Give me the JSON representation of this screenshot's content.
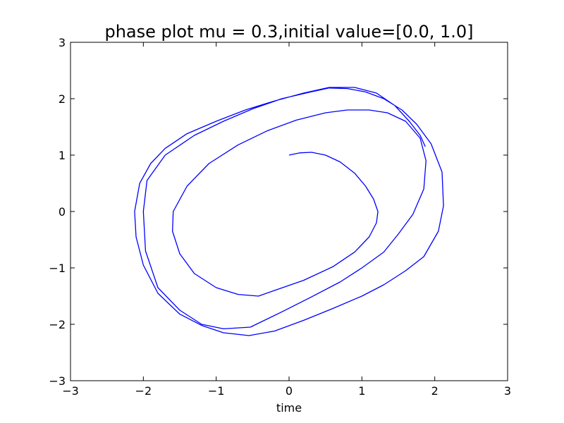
{
  "chart_data": {
    "type": "line",
    "title": "phase plot mu = 0.3,initial value=[0.0, 1.0]",
    "xlabel": "time",
    "ylabel": "",
    "xlim": [
      -3,
      3
    ],
    "ylim": [
      -3,
      3
    ],
    "x_ticks": [
      -3,
      -2,
      -1,
      0,
      1,
      2,
      3
    ],
    "y_ticks": [
      -3,
      -2,
      -1,
      0,
      1,
      2,
      3
    ],
    "x_tick_labels": [
      "−3",
      "−2",
      "−1",
      "0",
      "1",
      "2",
      "3"
    ],
    "y_tick_labels": [
      "−3",
      "−2",
      "−1",
      "0",
      "1",
      "2",
      "3"
    ],
    "grid": false,
    "legend": "none",
    "series": [
      {
        "color": "#0000ff",
        "x": [
          0.0,
          0.15,
          0.31,
          0.5,
          0.7,
          0.9,
          1.05,
          1.16,
          1.22,
          1.2,
          1.1,
          0.9,
          0.6,
          0.2,
          -0.2,
          -0.42,
          -0.7,
          -1.0,
          -1.3,
          -1.5,
          -1.6,
          -1.59,
          -1.4,
          -1.1,
          -0.7,
          -0.3,
          0.1,
          0.5,
          0.8,
          1.1,
          1.35,
          1.6,
          1.8,
          1.88,
          1.85,
          1.7,
          1.5,
          1.3,
          1.0,
          0.7,
          0.3,
          -0.1,
          -0.53,
          -0.9,
          -1.2,
          -1.5,
          -1.8,
          -1.97,
          -2.0,
          -1.95,
          -1.7,
          -1.3,
          -0.9,
          -0.5,
          -0.1,
          0.3,
          0.55,
          0.8,
          1.05,
          1.3,
          1.55,
          1.75,
          1.95,
          2.1,
          2.12,
          2.05,
          1.85,
          1.6,
          1.3,
          1.0,
          0.6,
          0.2,
          -0.2,
          -0.55,
          -0.9,
          -1.2,
          -1.5,
          -1.8,
          -2.0,
          -2.1,
          -2.12,
          -2.05,
          -1.9,
          -1.7,
          -1.4,
          -1.0,
          -0.6,
          -0.2,
          0.2,
          0.55,
          0.9,
          1.2,
          1.45,
          1.65,
          1.8,
          1.87
        ],
        "y": [
          1.0,
          1.04,
          1.05,
          1.0,
          0.88,
          0.68,
          0.45,
          0.22,
          0.0,
          -0.2,
          -0.45,
          -0.72,
          -0.98,
          -1.22,
          -1.4,
          -1.5,
          -1.47,
          -1.35,
          -1.1,
          -0.75,
          -0.35,
          0.0,
          0.45,
          0.85,
          1.18,
          1.43,
          1.62,
          1.75,
          1.8,
          1.8,
          1.75,
          1.6,
          1.3,
          0.9,
          0.4,
          -0.05,
          -0.4,
          -0.72,
          -1.0,
          -1.25,
          -1.52,
          -1.78,
          -2.05,
          -2.08,
          -2.0,
          -1.75,
          -1.35,
          -0.7,
          0.0,
          0.55,
          1.0,
          1.35,
          1.6,
          1.82,
          2.0,
          2.12,
          2.19,
          2.18,
          2.12,
          2.0,
          1.8,
          1.55,
          1.2,
          0.7,
          0.1,
          -0.35,
          -0.8,
          -1.05,
          -1.3,
          -1.5,
          -1.72,
          -1.93,
          -2.12,
          -2.2,
          -2.15,
          -2.02,
          -1.82,
          -1.45,
          -0.95,
          -0.45,
          0.0,
          0.5,
          0.85,
          1.12,
          1.38,
          1.6,
          1.8,
          1.96,
          2.1,
          2.2,
          2.2,
          2.1,
          1.88,
          1.6,
          1.35,
          1.15
        ]
      }
    ]
  }
}
